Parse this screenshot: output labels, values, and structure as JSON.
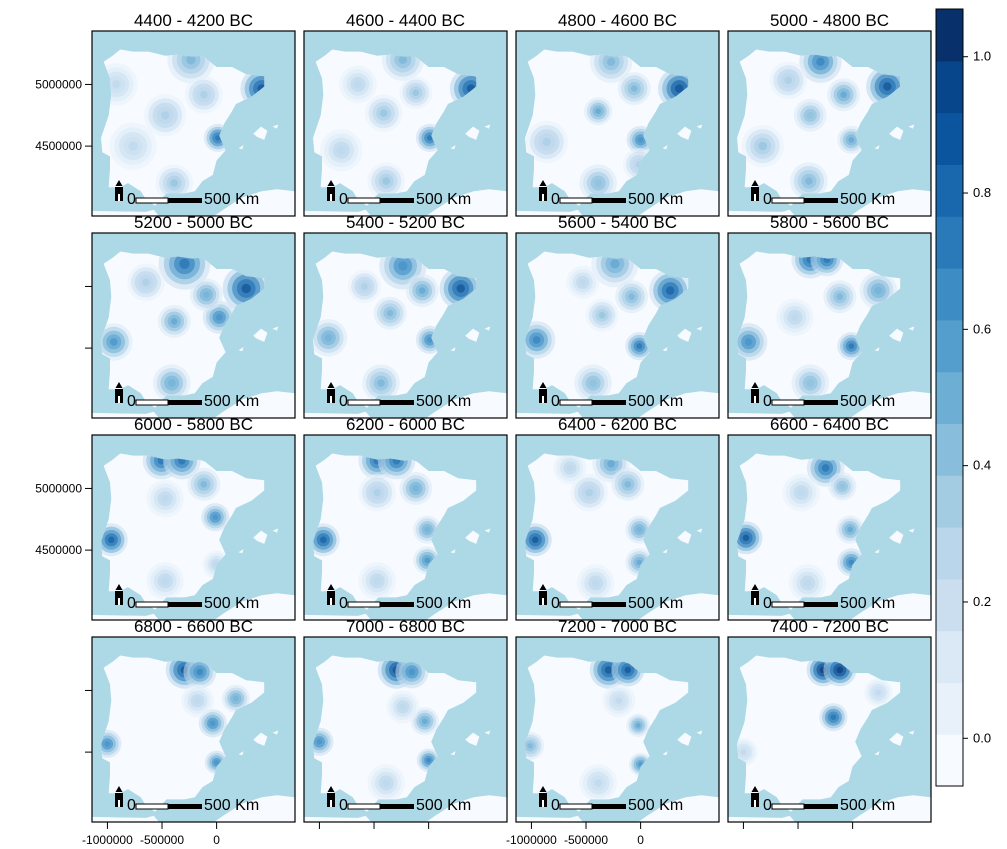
{
  "colors": {
    "sea": "#add8e6",
    "land": "#f7fbff",
    "scale_ramp": [
      "#f7fbff",
      "#e8f1fa",
      "#dbe9f6",
      "#cadef0",
      "#bad6eb",
      "#a3cce3",
      "#88bedc",
      "#6daed5",
      "#539ecd",
      "#3d8dc4",
      "#2a7ab9",
      "#1967ad",
      "#0b559f",
      "#08468b",
      "#08306b"
    ]
  },
  "icons": {
    "north_arrow": "north-arrow-icon"
  },
  "panels": [
    {
      "title": "4400 - 4200  BC",
      "scale_label_zero": "0",
      "scale_label_end": "500 Km",
      "hotspots": [
        {
          "lon": 3.0,
          "lat": 41.8,
          "v": 0.95,
          "r": 0.9
        },
        {
          "lon": -0.4,
          "lat": 39.4,
          "v": 0.85,
          "r": 0.6
        },
        {
          "lon": -2.5,
          "lat": 43.2,
          "v": 0.5,
          "r": 1.0
        },
        {
          "lon": -4.5,
          "lat": 40.5,
          "v": 0.35,
          "r": 0.9
        },
        {
          "lon": -1.5,
          "lat": 41.5,
          "v": 0.35,
          "r": 0.8
        },
        {
          "lon": -3.8,
          "lat": 37.2,
          "v": 0.4,
          "r": 0.8
        },
        {
          "lon": -7.0,
          "lat": 39.0,
          "v": 0.25,
          "r": 1.0
        },
        {
          "lon": -8.3,
          "lat": 42.0,
          "v": 0.25,
          "r": 0.9
        }
      ]
    },
    {
      "title": "4600 - 4400  BC",
      "scale_label_zero": "0",
      "scale_label_end": "500 Km",
      "hotspots": [
        {
          "lon": 2.8,
          "lat": 41.8,
          "v": 0.95,
          "r": 0.9
        },
        {
          "lon": -0.4,
          "lat": 39.4,
          "v": 0.8,
          "r": 0.6
        },
        {
          "lon": -2.5,
          "lat": 43.2,
          "v": 0.5,
          "r": 0.9
        },
        {
          "lon": -4.0,
          "lat": 40.6,
          "v": 0.4,
          "r": 0.8
        },
        {
          "lon": -1.5,
          "lat": 41.6,
          "v": 0.4,
          "r": 0.7
        },
        {
          "lon": -3.8,
          "lat": 37.3,
          "v": 0.4,
          "r": 0.8
        },
        {
          "lon": -7.3,
          "lat": 38.8,
          "v": 0.3,
          "r": 0.9
        },
        {
          "lon": -6.0,
          "lat": 42.0,
          "v": 0.3,
          "r": 0.8
        }
      ]
    },
    {
      "title": "4800 - 4600  BC",
      "scale_label_zero": "0",
      "scale_label_end": "500 Km",
      "hotspots": [
        {
          "lon": 2.5,
          "lat": 41.8,
          "v": 1.0,
          "r": 0.9
        },
        {
          "lon": -0.5,
          "lat": 39.3,
          "v": 0.7,
          "r": 0.6
        },
        {
          "lon": -2.8,
          "lat": 43.1,
          "v": 0.5,
          "r": 0.9
        },
        {
          "lon": -3.8,
          "lat": 40.7,
          "v": 0.6,
          "r": 0.6
        },
        {
          "lon": -1.0,
          "lat": 41.8,
          "v": 0.5,
          "r": 0.7
        },
        {
          "lon": -3.8,
          "lat": 37.2,
          "v": 0.45,
          "r": 0.8
        },
        {
          "lon": -7.8,
          "lat": 39.2,
          "v": 0.35,
          "r": 0.9
        },
        {
          "lon": -0.6,
          "lat": 38.1,
          "v": 0.35,
          "r": 0.7
        }
      ]
    },
    {
      "title": "5000 - 4800  BC",
      "scale_label_zero": "0",
      "scale_label_end": "500 Km",
      "hotspots": [
        {
          "lon": 2.2,
          "lat": 41.9,
          "v": 0.95,
          "r": 0.9
        },
        {
          "lon": -0.6,
          "lat": 39.3,
          "v": 0.6,
          "r": 0.6
        },
        {
          "lon": -3.0,
          "lat": 43.1,
          "v": 0.75,
          "r": 0.9
        },
        {
          "lon": -1.2,
          "lat": 41.5,
          "v": 0.6,
          "r": 0.7
        },
        {
          "lon": -3.8,
          "lat": 40.5,
          "v": 0.45,
          "r": 0.7
        },
        {
          "lon": -3.9,
          "lat": 37.3,
          "v": 0.5,
          "r": 0.8
        },
        {
          "lon": -7.5,
          "lat": 39.0,
          "v": 0.4,
          "r": 0.9
        },
        {
          "lon": -5.5,
          "lat": 42.2,
          "v": 0.35,
          "r": 0.8
        }
      ]
    },
    {
      "title": "5200 - 5000  BC",
      "scale_label_zero": "0",
      "scale_label_end": "500 Km",
      "hotspots": [
        {
          "lon": 1.8,
          "lat": 41.9,
          "v": 0.95,
          "r": 1.0
        },
        {
          "lon": -0.3,
          "lat": 40.5,
          "v": 0.7,
          "r": 0.7
        },
        {
          "lon": -3.0,
          "lat": 43.1,
          "v": 0.8,
          "r": 1.1
        },
        {
          "lon": -1.3,
          "lat": 41.6,
          "v": 0.55,
          "r": 0.7
        },
        {
          "lon": -3.8,
          "lat": 40.3,
          "v": 0.6,
          "r": 0.7
        },
        {
          "lon": -4.0,
          "lat": 37.3,
          "v": 0.55,
          "r": 0.8
        },
        {
          "lon": -8.5,
          "lat": 39.3,
          "v": 0.65,
          "r": 0.8
        },
        {
          "lon": -6.0,
          "lat": 42.2,
          "v": 0.35,
          "r": 0.8
        }
      ]
    },
    {
      "title": "5400 - 5200  BC",
      "scale_label_zero": "0",
      "scale_label_end": "500 Km",
      "hotspots": [
        {
          "lon": 2.0,
          "lat": 41.9,
          "v": 0.95,
          "r": 0.9
        },
        {
          "lon": -0.4,
          "lat": 39.4,
          "v": 0.7,
          "r": 0.6
        },
        {
          "lon": -2.5,
          "lat": 43.0,
          "v": 0.7,
          "r": 1.0
        },
        {
          "lon": -1.0,
          "lat": 41.8,
          "v": 0.6,
          "r": 0.7
        },
        {
          "lon": -3.5,
          "lat": 40.7,
          "v": 0.5,
          "r": 0.7
        },
        {
          "lon": -4.2,
          "lat": 37.3,
          "v": 0.5,
          "r": 0.8
        },
        {
          "lon": -8.3,
          "lat": 39.5,
          "v": 0.55,
          "r": 0.8
        },
        {
          "lon": -5.5,
          "lat": 42.0,
          "v": 0.35,
          "r": 0.7
        }
      ]
    },
    {
      "title": "5600 - 5400  BC",
      "scale_label_zero": "0",
      "scale_label_end": "500 Km",
      "hotspots": [
        {
          "lon": 1.8,
          "lat": 41.8,
          "v": 0.9,
          "r": 0.9
        },
        {
          "lon": -0.6,
          "lat": 39.1,
          "v": 0.8,
          "r": 0.6
        },
        {
          "lon": -2.5,
          "lat": 43.1,
          "v": 0.6,
          "r": 1.0
        },
        {
          "lon": -1.2,
          "lat": 41.5,
          "v": 0.5,
          "r": 0.7
        },
        {
          "lon": -3.5,
          "lat": 40.6,
          "v": 0.4,
          "r": 0.7
        },
        {
          "lon": -4.2,
          "lat": 37.3,
          "v": 0.45,
          "r": 0.8
        },
        {
          "lon": -8.6,
          "lat": 39.4,
          "v": 0.75,
          "r": 0.8
        },
        {
          "lon": -5.0,
          "lat": 42.2,
          "v": 0.3,
          "r": 0.7
        }
      ]
    },
    {
      "title": "5800 - 5600  BC",
      "scale_label_zero": "0",
      "scale_label_end": "500 Km",
      "hotspots": [
        {
          "lon": -3.8,
          "lat": 43.3,
          "v": 0.85,
          "r": 0.8
        },
        {
          "lon": -2.5,
          "lat": 43.3,
          "v": 0.8,
          "r": 0.7
        },
        {
          "lon": -0.6,
          "lat": 39.1,
          "v": 0.8,
          "r": 0.6
        },
        {
          "lon": 1.5,
          "lat": 41.8,
          "v": 0.55,
          "r": 0.8
        },
        {
          "lon": -1.5,
          "lat": 41.5,
          "v": 0.5,
          "r": 0.7
        },
        {
          "lon": -3.8,
          "lat": 37.3,
          "v": 0.45,
          "r": 0.8
        },
        {
          "lon": -8.6,
          "lat": 39.3,
          "v": 0.7,
          "r": 0.8
        },
        {
          "lon": -5.0,
          "lat": 40.5,
          "v": 0.3,
          "r": 0.8
        }
      ]
    },
    {
      "title": "6000 - 5800  BC",
      "scale_label_zero": "0",
      "scale_label_end": "500 Km",
      "hotspots": [
        {
          "lon": -4.8,
          "lat": 43.35,
          "v": 0.8,
          "r": 0.8
        },
        {
          "lon": -3.2,
          "lat": 43.35,
          "v": 0.8,
          "r": 0.8
        },
        {
          "lon": -0.6,
          "lat": 40.6,
          "v": 0.7,
          "r": 0.6
        },
        {
          "lon": -1.5,
          "lat": 42.2,
          "v": 0.5,
          "r": 0.7
        },
        {
          "lon": -8.7,
          "lat": 39.5,
          "v": 0.9,
          "r": 0.7
        },
        {
          "lon": -4.5,
          "lat": 41.5,
          "v": 0.3,
          "r": 0.8
        },
        {
          "lon": -0.5,
          "lat": 38.3,
          "v": 0.3,
          "r": 0.6
        },
        {
          "lon": -4.5,
          "lat": 37.5,
          "v": 0.3,
          "r": 0.8
        }
      ]
    },
    {
      "title": "6200 - 6000  BC",
      "scale_label_zero": "0",
      "scale_label_end": "500 Km",
      "hotspots": [
        {
          "lon": -4.5,
          "lat": 43.35,
          "v": 0.8,
          "r": 0.8
        },
        {
          "lon": -3.0,
          "lat": 43.35,
          "v": 0.8,
          "r": 0.8
        },
        {
          "lon": -0.6,
          "lat": 40.0,
          "v": 0.55,
          "r": 0.6
        },
        {
          "lon": -1.5,
          "lat": 42.0,
          "v": 0.55,
          "r": 0.7
        },
        {
          "lon": -8.7,
          "lat": 39.5,
          "v": 0.9,
          "r": 0.7
        },
        {
          "lon": -0.6,
          "lat": 38.5,
          "v": 0.65,
          "r": 0.6
        },
        {
          "lon": -4.5,
          "lat": 41.8,
          "v": 0.35,
          "r": 0.8
        },
        {
          "lon": -4.5,
          "lat": 37.5,
          "v": 0.3,
          "r": 0.8
        }
      ]
    },
    {
      "title": "6400 - 6200  BC",
      "scale_label_zero": "0",
      "scale_label_end": "500 Km",
      "hotspots": [
        {
          "lon": -2.8,
          "lat": 43.2,
          "v": 0.6,
          "r": 0.8
        },
        {
          "lon": -0.6,
          "lat": 40.0,
          "v": 0.55,
          "r": 0.6
        },
        {
          "lon": -1.5,
          "lat": 42.2,
          "v": 0.5,
          "r": 0.7
        },
        {
          "lon": -8.7,
          "lat": 39.5,
          "v": 0.95,
          "r": 0.7
        },
        {
          "lon": -0.6,
          "lat": 38.4,
          "v": 0.6,
          "r": 0.6
        },
        {
          "lon": -4.5,
          "lat": 41.8,
          "v": 0.35,
          "r": 0.8
        },
        {
          "lon": -4.0,
          "lat": 37.4,
          "v": 0.3,
          "r": 0.8
        },
        {
          "lon": -6.0,
          "lat": 43.0,
          "v": 0.3,
          "r": 0.7
        }
      ]
    },
    {
      "title": "6600 - 6400  BC",
      "scale_label_zero": "0",
      "scale_label_end": "500 Km",
      "hotspots": [
        {
          "lon": -2.6,
          "lat": 43.0,
          "v": 0.8,
          "r": 0.8
        },
        {
          "lon": -0.7,
          "lat": 40.0,
          "v": 0.6,
          "r": 0.6
        },
        {
          "lon": -1.3,
          "lat": 42.1,
          "v": 0.45,
          "r": 0.6
        },
        {
          "lon": -8.8,
          "lat": 39.6,
          "v": 0.95,
          "r": 0.7
        },
        {
          "lon": -0.6,
          "lat": 38.4,
          "v": 0.75,
          "r": 0.6
        },
        {
          "lon": -4.5,
          "lat": 41.8,
          "v": 0.3,
          "r": 0.8
        },
        {
          "lon": -4.0,
          "lat": 37.4,
          "v": 0.3,
          "r": 0.8
        }
      ]
    },
    {
      "title": "6800 - 6600  BC",
      "scale_label_zero": "0",
      "scale_label_end": "500 Km",
      "hotspots": [
        {
          "lon": -3.0,
          "lat": 43.0,
          "v": 0.95,
          "r": 0.8
        },
        {
          "lon": -1.8,
          "lat": 42.9,
          "v": 0.75,
          "r": 0.7
        },
        {
          "lon": -0.8,
          "lat": 40.4,
          "v": 0.7,
          "r": 0.6
        },
        {
          "lon": -0.5,
          "lat": 38.5,
          "v": 0.7,
          "r": 0.5
        },
        {
          "lon": -9.0,
          "lat": 39.4,
          "v": 0.7,
          "r": 0.6
        },
        {
          "lon": 1.0,
          "lat": 41.6,
          "v": 0.55,
          "r": 0.6
        },
        {
          "lon": -2.0,
          "lat": 41.5,
          "v": 0.3,
          "r": 0.7
        }
      ]
    },
    {
      "title": "7000 - 6800  BC",
      "scale_label_zero": "0",
      "scale_label_end": "500 Km",
      "hotspots": [
        {
          "lon": -3.0,
          "lat": 43.0,
          "v": 1.0,
          "r": 0.8
        },
        {
          "lon": -1.8,
          "lat": 42.9,
          "v": 0.7,
          "r": 0.7
        },
        {
          "lon": -0.8,
          "lat": 40.5,
          "v": 0.6,
          "r": 0.6
        },
        {
          "lon": -0.5,
          "lat": 38.6,
          "v": 0.75,
          "r": 0.5
        },
        {
          "lon": -9.0,
          "lat": 39.5,
          "v": 0.7,
          "r": 0.6
        },
        {
          "lon": -2.5,
          "lat": 41.2,
          "v": 0.3,
          "r": 0.7
        },
        {
          "lon": -3.8,
          "lat": 37.5,
          "v": 0.3,
          "r": 0.8
        }
      ]
    },
    {
      "title": "7200 - 7000  BC",
      "scale_label_zero": "0",
      "scale_label_end": "500 Km",
      "hotspots": [
        {
          "lon": -3.0,
          "lat": 43.0,
          "v": 0.95,
          "r": 0.8
        },
        {
          "lon": -1.5,
          "lat": 43.0,
          "v": 0.95,
          "r": 0.7
        },
        {
          "lon": -0.7,
          "lat": 40.3,
          "v": 0.6,
          "r": 0.5
        },
        {
          "lon": -0.5,
          "lat": 38.4,
          "v": 0.65,
          "r": 0.5
        },
        {
          "lon": -9.1,
          "lat": 39.3,
          "v": 0.5,
          "r": 0.6
        },
        {
          "lon": -2.2,
          "lat": 41.5,
          "v": 0.25,
          "r": 0.7
        },
        {
          "lon": -3.8,
          "lat": 37.5,
          "v": 0.25,
          "r": 0.8
        }
      ]
    },
    {
      "title": "7400 - 7200  BC",
      "scale_label_zero": "0",
      "scale_label_end": "500 Km",
      "hotspots": [
        {
          "lon": -2.8,
          "lat": 43.0,
          "v": 1.05,
          "r": 0.7
        },
        {
          "lon": -1.5,
          "lat": 43.0,
          "v": 1.05,
          "r": 0.7
        },
        {
          "lon": -2.0,
          "lat": 40.7,
          "v": 0.85,
          "r": 0.6
        },
        {
          "lon": -9.0,
          "lat": 39.0,
          "v": 0.25,
          "r": 0.6
        },
        {
          "lon": 1.5,
          "lat": 41.9,
          "v": 0.25,
          "r": 0.6
        }
      ]
    }
  ],
  "axes": {
    "left_ticks": [
      {
        "row": 0,
        "label": "5000000",
        "lat": 42.0
      },
      {
        "row": 0,
        "label": "4500000",
        "lat": 39.0
      },
      {
        "row": 1,
        "label": "",
        "lat": 42.0
      },
      {
        "row": 1,
        "label": "",
        "lat": 39.0
      },
      {
        "row": 2,
        "label": "5000000",
        "lat": 42.0
      },
      {
        "row": 2,
        "label": "4500000",
        "lat": 39.0
      },
      {
        "row": 3,
        "label": "",
        "lat": 42.0
      },
      {
        "row": 3,
        "label": "",
        "lat": 39.0
      }
    ],
    "bottom_ticks": [
      {
        "col": 0,
        "label": "-1000000",
        "lon": -9.0
      },
      {
        "col": 0,
        "label": "-500000",
        "lon": -4.75
      },
      {
        "col": 0,
        "label": "0",
        "lon": -0.5
      },
      {
        "col": 1,
        "label": "",
        "lon": -9.0
      },
      {
        "col": 1,
        "label": "",
        "lon": -4.75
      },
      {
        "col": 1,
        "label": "",
        "lon": -0.5
      },
      {
        "col": 2,
        "label": "-1000000",
        "lon": -9.0
      },
      {
        "col": 2,
        "label": "-500000",
        "lon": -4.75
      },
      {
        "col": 2,
        "label": "0",
        "lon": -0.5
      },
      {
        "col": 3,
        "label": "",
        "lon": -9.0
      },
      {
        "col": 3,
        "label": "",
        "lon": -4.75
      },
      {
        "col": 3,
        "label": "",
        "lon": -0.5
      }
    ]
  },
  "colorbar": {
    "min": -0.07,
    "max": 1.07,
    "ticks": [
      {
        "value": 0.0,
        "label": "0.0"
      },
      {
        "value": 0.2,
        "label": "0.2"
      },
      {
        "value": 0.4,
        "label": "0.4"
      },
      {
        "value": 0.6,
        "label": "0.6"
      },
      {
        "value": 0.8,
        "label": "0.8"
      },
      {
        "value": 1.0,
        "label": "1.0"
      }
    ]
  }
}
